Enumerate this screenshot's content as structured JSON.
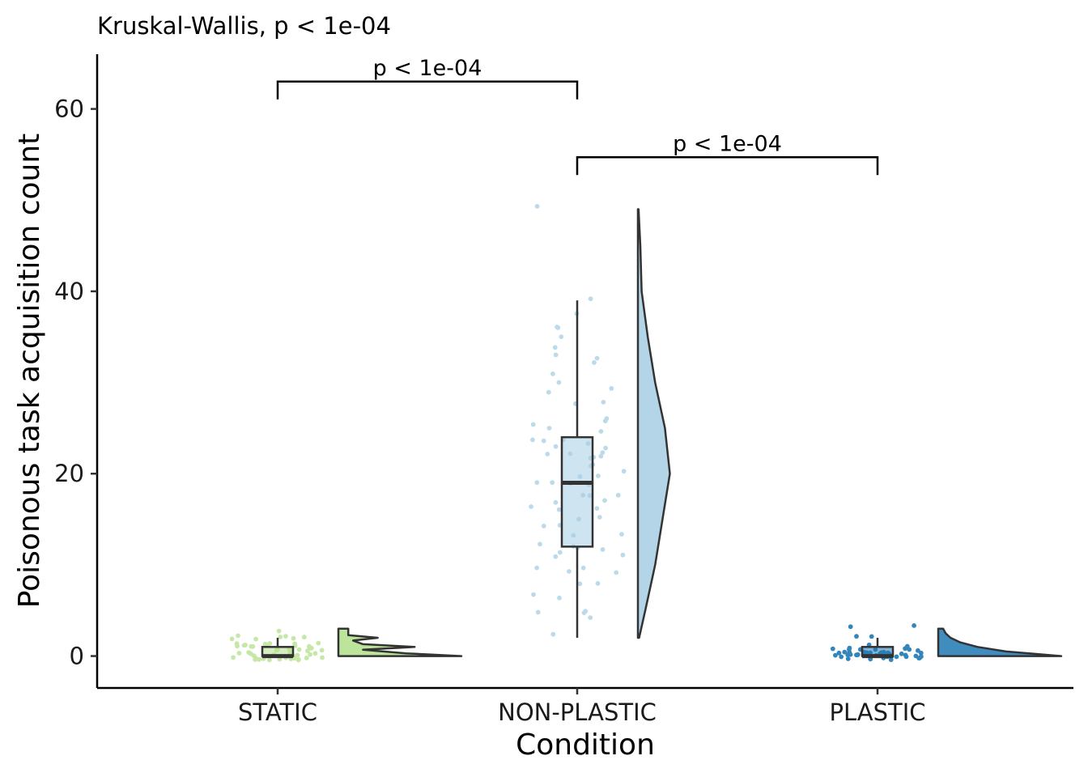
{
  "chart_data": {
    "type": "raincloud",
    "subtitle": "Kruskal-Wallis, p < 1e-04",
    "xlabel": "Condition",
    "ylabel": "Poisonous task acquisition count",
    "ylim": [
      -3.5,
      66
    ],
    "yticks": [
      0,
      20,
      40,
      60
    ],
    "categories": [
      "STATIC",
      "NON-PLASTIC",
      "PLASTIC"
    ],
    "groups": [
      {
        "name": "STATIC",
        "color": "#b2df8a",
        "box": {
          "min": 0,
          "q1": 0,
          "median": 0,
          "q3": 1,
          "max": 2
        },
        "points": [
          0,
          0,
          0,
          0,
          0,
          0,
          0,
          0,
          0,
          0,
          0,
          0,
          0,
          0,
          0,
          0,
          0,
          0,
          0,
          0,
          0,
          0,
          0,
          0,
          0,
          0,
          0,
          0,
          0,
          0,
          1,
          1,
          1,
          1,
          1,
          1,
          1,
          1,
          1,
          1,
          1,
          1,
          1,
          1,
          1,
          1,
          1,
          1,
          1,
          1,
          1,
          1,
          2,
          2,
          2,
          2,
          2,
          2,
          2,
          3
        ],
        "density": [
          [
            0,
            1.0
          ],
          [
            0.3,
            0.55
          ],
          [
            0.7,
            0.2
          ],
          [
            1.0,
            0.62
          ],
          [
            1.3,
            0.2
          ],
          [
            1.7,
            0.12
          ],
          [
            2.0,
            0.32
          ],
          [
            2.3,
            0.08
          ],
          [
            3.0,
            0.08
          ]
        ]
      },
      {
        "name": "NON-PLASTIC",
        "color": "#a6cee3",
        "box": {
          "min": 2,
          "q1": 12,
          "median": 19,
          "q3": 24,
          "max": 39
        },
        "points": [
          2,
          4,
          5,
          5,
          5,
          6,
          7,
          8,
          8,
          9,
          9,
          10,
          10,
          11,
          11,
          11,
          12,
          12,
          12,
          12,
          13,
          13,
          14,
          14,
          15,
          15,
          16,
          16,
          16,
          17,
          17,
          18,
          18,
          18,
          19,
          19,
          19,
          19,
          20,
          20,
          20,
          21,
          21,
          22,
          22,
          22,
          22,
          22,
          22,
          23,
          23,
          23,
          24,
          24,
          24,
          25,
          25,
          25,
          26,
          26,
          28,
          28,
          29,
          29,
          30,
          31,
          32,
          33,
          33,
          34,
          35,
          36,
          36,
          38,
          39,
          49
        ],
        "density": [
          [
            2,
            0.01
          ],
          [
            5,
            0.06
          ],
          [
            10,
            0.14
          ],
          [
            15,
            0.2
          ],
          [
            20,
            0.26
          ],
          [
            25,
            0.22
          ],
          [
            30,
            0.14
          ],
          [
            35,
            0.08
          ],
          [
            40,
            0.03
          ],
          [
            45,
            0.02
          ],
          [
            49,
            0.005
          ]
        ]
      },
      {
        "name": "PLASTIC",
        "color": "#1f78b4",
        "box": {
          "min": 0,
          "q1": 0,
          "median": 0,
          "q3": 1,
          "max": 2
        },
        "points": [
          0,
          0,
          0,
          0,
          0,
          0,
          0,
          0,
          0,
          0,
          0,
          0,
          0,
          0,
          0,
          0,
          0,
          0,
          0,
          0,
          0,
          0,
          0,
          0,
          0,
          0,
          0,
          0,
          0,
          0,
          0,
          0,
          0,
          0,
          0,
          1,
          1,
          1,
          1,
          1,
          1,
          1,
          1,
          1,
          1,
          2,
          2,
          3,
          3
        ],
        "density": [
          [
            0,
            1.0
          ],
          [
            0.5,
            0.55
          ],
          [
            1.0,
            0.32
          ],
          [
            1.5,
            0.18
          ],
          [
            2.0,
            0.1
          ],
          [
            2.5,
            0.06
          ],
          [
            3.0,
            0.04
          ]
        ]
      }
    ],
    "comparisons": [
      {
        "from": "STATIC",
        "to": "NON-PLASTIC",
        "label": "p < 1e-04",
        "y": 63
      },
      {
        "from": "NON-PLASTIC",
        "to": "PLASTIC",
        "label": "p < 1e-04",
        "y": 54.7
      }
    ]
  }
}
